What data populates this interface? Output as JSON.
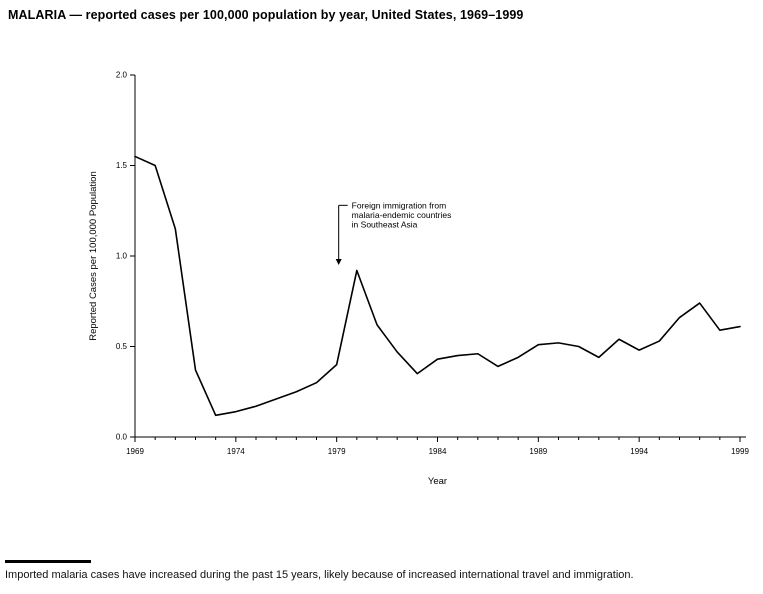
{
  "title": "MALARIA — reported cases per 100,000 population by year, United States, 1969–1999",
  "footnote": "Imported malaria cases have increased during the past 15 years, likely because of increased international travel and immigration.",
  "chart_data": {
    "type": "line",
    "title": "MALARIA — reported cases per 100,000 population by year, United States, 1969–1999",
    "xlabel": "Year",
    "ylabel": "Reported Cases per 100,000 Population",
    "ylim": [
      0.0,
      2.0
    ],
    "yticks": [
      0.0,
      0.5,
      1.0,
      1.5,
      2.0
    ],
    "xticks": [
      1969,
      1974,
      1979,
      1984,
      1989,
      1994,
      1999
    ],
    "grid": false,
    "legend": "none",
    "line_color": "#000000",
    "x": [
      1969,
      1970,
      1971,
      1972,
      1973,
      1974,
      1975,
      1976,
      1977,
      1978,
      1979,
      1980,
      1981,
      1982,
      1983,
      1984,
      1985,
      1986,
      1987,
      1988,
      1989,
      1990,
      1991,
      1992,
      1993,
      1994,
      1995,
      1996,
      1997,
      1998,
      1999
    ],
    "values": [
      1.55,
      1.5,
      1.15,
      0.37,
      0.12,
      0.14,
      0.17,
      0.21,
      0.25,
      0.3,
      0.4,
      0.92,
      0.62,
      0.47,
      0.35,
      0.43,
      0.45,
      0.46,
      0.39,
      0.44,
      0.51,
      0.52,
      0.5,
      0.44,
      0.54,
      0.48,
      0.53,
      0.66,
      0.74,
      0.59,
      0.61
    ],
    "annotation": {
      "text_lines": [
        "Foreign immigration from",
        "malaria-endemic countries",
        "in Southeast Asia"
      ],
      "x": 1979.1,
      "arrow_from": 1.28,
      "arrow_to": 0.95
    }
  }
}
